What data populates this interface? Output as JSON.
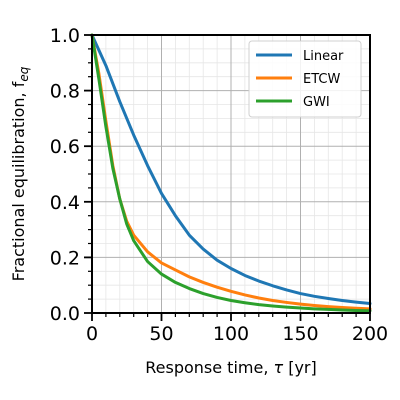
{
  "chart_data": {
    "type": "line",
    "xlabel": "Response time, τ [yr]",
    "ylabel": "Fractional equilibration, f",
    "ylabel_subscript": "eq",
    "xlim": [
      0,
      200
    ],
    "ylim": [
      0,
      1
    ],
    "x_ticks": [
      0,
      50,
      100,
      150,
      200
    ],
    "y_ticks": [
      0.0,
      0.2,
      0.4,
      0.6,
      0.8,
      1.0
    ],
    "x_tick_labels": [
      "0",
      "50",
      "100",
      "150",
      "200"
    ],
    "y_tick_labels": [
      "0.0",
      "0.2",
      "0.4",
      "0.6",
      "0.8",
      "1.0"
    ],
    "grid": true,
    "legend_position": "top-right",
    "series": [
      {
        "name": "Linear",
        "color": "#1f77b4",
        "x": [
          0,
          10,
          20,
          30,
          40,
          50,
          60,
          70,
          80,
          90,
          100,
          110,
          120,
          130,
          140,
          150,
          160,
          170,
          180,
          190,
          200
        ],
        "y": [
          1.0,
          0.89,
          0.76,
          0.64,
          0.53,
          0.43,
          0.35,
          0.28,
          0.23,
          0.19,
          0.16,
          0.135,
          0.115,
          0.098,
          0.083,
          0.07,
          0.06,
          0.052,
          0.045,
          0.039,
          0.034
        ]
      },
      {
        "name": "ETCW",
        "color": "#ff7f0e",
        "x": [
          0,
          5,
          10,
          15,
          20,
          25,
          30,
          40,
          50,
          60,
          70,
          80,
          90,
          100,
          110,
          120,
          130,
          140,
          150,
          160,
          170,
          180,
          190,
          200
        ],
        "y": [
          1.0,
          0.86,
          0.69,
          0.53,
          0.41,
          0.33,
          0.28,
          0.22,
          0.18,
          0.155,
          0.13,
          0.11,
          0.093,
          0.078,
          0.065,
          0.054,
          0.045,
          0.038,
          0.032,
          0.027,
          0.023,
          0.02,
          0.017,
          0.015
        ]
      },
      {
        "name": "GWI",
        "color": "#2ca02c",
        "x": [
          0,
          5,
          10,
          15,
          20,
          25,
          30,
          40,
          50,
          60,
          70,
          80,
          90,
          100,
          110,
          120,
          130,
          140,
          150,
          160,
          170,
          180,
          190,
          200
        ],
        "y": [
          1.0,
          0.84,
          0.67,
          0.52,
          0.41,
          0.32,
          0.26,
          0.185,
          0.14,
          0.11,
          0.088,
          0.07,
          0.056,
          0.045,
          0.037,
          0.03,
          0.025,
          0.021,
          0.018,
          0.015,
          0.013,
          0.011,
          0.009,
          0.008
        ]
      }
    ]
  }
}
